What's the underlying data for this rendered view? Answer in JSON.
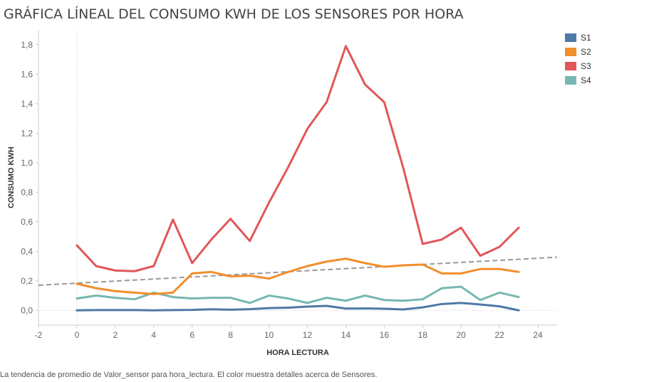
{
  "chart_data": {
    "type": "line",
    "title": "GRÁFICA LÍNEAL DEL CONSUMO KWH DE LOS SENSORES POR HORA",
    "xlabel": "HORA LECTURA",
    "ylabel": "CONSUMO KWH",
    "xlim": [
      -2,
      25
    ],
    "ylim": [
      -0.1,
      1.9
    ],
    "x_ticks": [
      -2,
      0,
      2,
      4,
      6,
      8,
      10,
      12,
      14,
      16,
      18,
      20,
      22,
      24
    ],
    "x_tick_labels": [
      "-2",
      "0",
      "2",
      "4",
      "6",
      "8",
      "10",
      "12",
      "14",
      "16",
      "18",
      "20",
      "22",
      "24"
    ],
    "y_ticks": [
      0,
      0.2,
      0.4,
      0.6,
      0.8,
      1.0,
      1.2,
      1.4,
      1.6,
      1.8
    ],
    "y_tick_labels": [
      "0,0",
      "0,2",
      "0,4",
      "0,6",
      "0,8",
      "1,0",
      "1,2",
      "1,4",
      "1,6",
      "1,8"
    ],
    "x": [
      0,
      1,
      2,
      3,
      4,
      5,
      6,
      7,
      8,
      9,
      10,
      11,
      12,
      13,
      14,
      15,
      16,
      17,
      18,
      19,
      20,
      21,
      22,
      23
    ],
    "series": [
      {
        "name": "S1",
        "color": "#4e79a7",
        "values": [
          0.0,
          0.002,
          0.002,
          0.002,
          0.0,
          0.002,
          0.003,
          0.007,
          0.004,
          0.008,
          0.015,
          0.018,
          0.025,
          0.03,
          0.012,
          0.013,
          0.011,
          0.006,
          0.02,
          0.043,
          0.05,
          0.04,
          0.027,
          0.0
        ]
      },
      {
        "name": "S2",
        "color": "#f28e2b",
        "values": [
          0.18,
          0.15,
          0.13,
          0.12,
          0.11,
          0.12,
          0.25,
          0.26,
          0.23,
          0.235,
          0.215,
          0.26,
          0.3,
          0.33,
          0.35,
          0.32,
          0.295,
          0.305,
          0.31,
          0.25,
          0.25,
          0.28,
          0.28,
          0.26
        ]
      },
      {
        "name": "S3",
        "color": "#e15759",
        "values": [
          0.44,
          0.3,
          0.27,
          0.265,
          0.3,
          0.615,
          0.32,
          0.48,
          0.62,
          0.47,
          0.73,
          0.97,
          1.23,
          1.41,
          1.79,
          1.53,
          1.41,
          0.96,
          0.45,
          0.48,
          0.56,
          0.37,
          0.43,
          0.56
        ]
      },
      {
        "name": "S4",
        "color": "#76b7b2",
        "values": [
          0.08,
          0.1,
          0.085,
          0.075,
          0.12,
          0.09,
          0.08,
          0.085,
          0.085,
          0.05,
          0.1,
          0.08,
          0.05,
          0.085,
          0.065,
          0.1,
          0.07,
          0.065,
          0.075,
          0.15,
          0.16,
          0.07,
          0.12,
          0.09
        ]
      }
    ],
    "trend_line": {
      "x": [
        -2,
        25
      ],
      "y": [
        0.17,
        0.36
      ],
      "color": "#999999",
      "style": "dashed"
    },
    "legend": "right",
    "grid": false
  },
  "caption": "La tendencia de promedio de Valor_sensor para hora_lectura.  El color muestra detalles acerca de Sensores."
}
